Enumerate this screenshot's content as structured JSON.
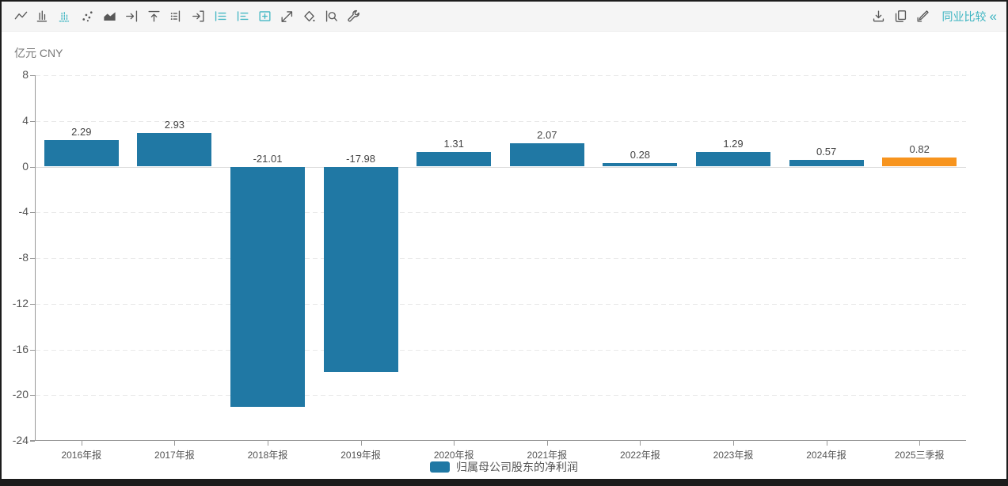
{
  "toolbar": {
    "left_icons": [
      {
        "name": "line-chart",
        "active": false
      },
      {
        "name": "bar-chart",
        "active": false
      },
      {
        "name": "dot-bar-chart",
        "active": true
      },
      {
        "name": "scatter-chart",
        "active": false
      },
      {
        "name": "area-chart",
        "active": false
      },
      {
        "name": "axis-arrow-right",
        "active": false
      },
      {
        "name": "axis-arrow-up",
        "active": false
      },
      {
        "name": "axis-dots",
        "active": false
      },
      {
        "name": "box-arrow-right",
        "active": false
      },
      {
        "name": "legend-list",
        "active": true
      },
      {
        "name": "legend-align",
        "active": true
      },
      {
        "name": "add-box",
        "active": true
      },
      {
        "name": "trend-line",
        "active": false
      },
      {
        "name": "paint-diamond",
        "active": false
      },
      {
        "name": "zoom-lens",
        "active": false
      },
      {
        "name": "wrench",
        "active": false
      }
    ],
    "right_icons": [
      {
        "name": "download"
      },
      {
        "name": "copy"
      },
      {
        "name": "edit"
      }
    ],
    "peer_compare": {
      "label": "同业比较",
      "collapse_glyph": "«"
    }
  },
  "chart_data": {
    "type": "bar",
    "unit_label": "亿元 CNY",
    "categories": [
      "2016年报",
      "2017年报",
      "2018年报",
      "2019年报",
      "2020年报",
      "2021年报",
      "2022年报",
      "2023年报",
      "2024年报",
      "2025三季报"
    ],
    "values": [
      2.29,
      2.93,
      -21.01,
      -17.98,
      1.31,
      2.07,
      0.28,
      1.29,
      0.57,
      0.82
    ],
    "value_labels": [
      "2.29",
      "2.93",
      "-21.01",
      "-17.98",
      "1.31",
      "2.07",
      "0.28",
      "1.29",
      "0.57",
      "0.82"
    ],
    "series": [
      {
        "name": "归属母公司股东的净利润",
        "color": "#2078A4"
      }
    ],
    "highlight": {
      "index": 9,
      "color": "#F7941E"
    },
    "ylim": [
      -24,
      8
    ],
    "ytick_step": 4,
    "grid": "horizontal-dashed",
    "legend_position": "bottom-center"
  },
  "colors": {
    "bar_blue": "#2078A4",
    "bar_orange": "#F7941E",
    "accent_teal": "#3BB4C1",
    "axis_line": "#999999",
    "text_gray": "#555555",
    "toolbar_bg": "#F5F5F5"
  }
}
